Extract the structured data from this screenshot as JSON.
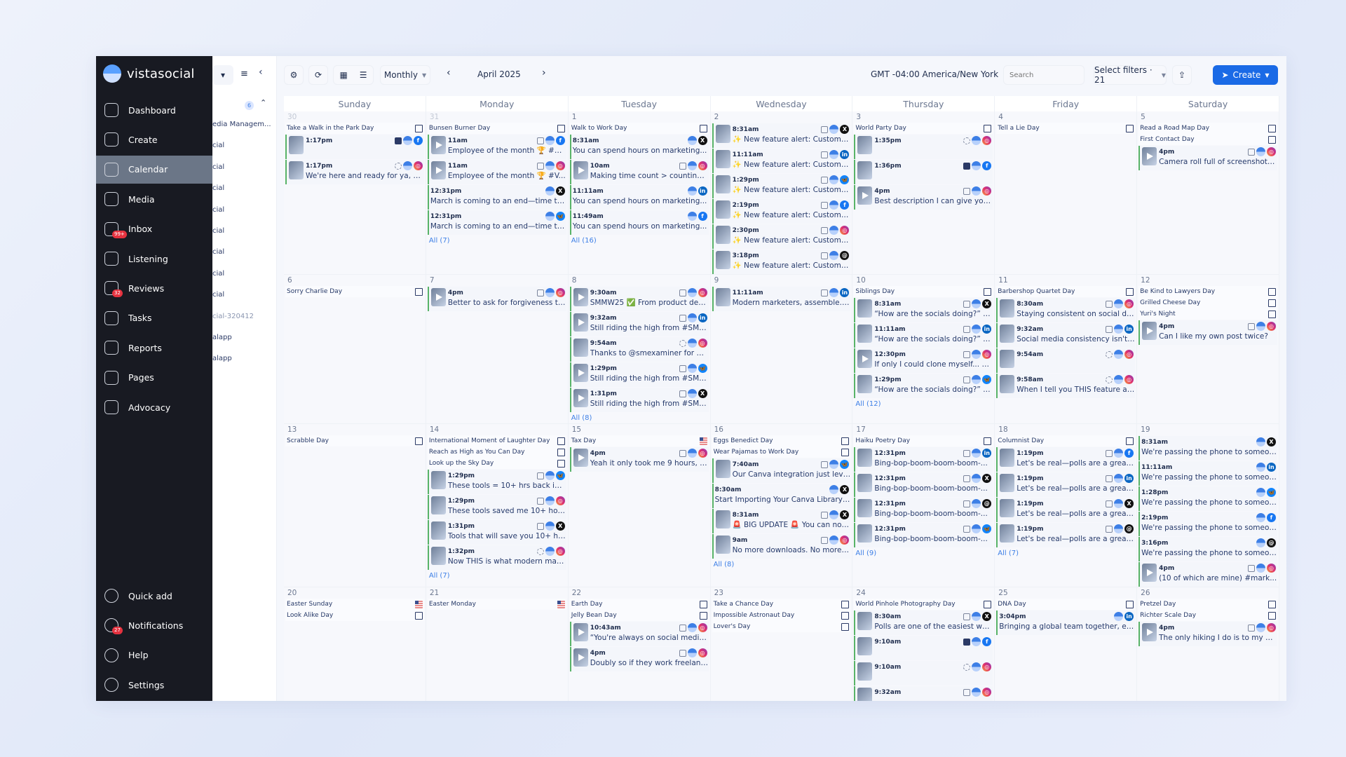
{
  "brand": "vistasocial",
  "colors": {
    "sidebar": "#181a22",
    "accent": "#1a6ae6",
    "post_border": "#58b368",
    "link": "#3d7fe6"
  },
  "sidebar": {
    "items": [
      {
        "label": "Dashboard",
        "icon": "home-icon"
      },
      {
        "label": "Create",
        "icon": "send-icon"
      },
      {
        "label": "Calendar",
        "icon": "calendar-icon",
        "active": true
      },
      {
        "label": "Media",
        "icon": "image-icon"
      },
      {
        "label": "Inbox",
        "icon": "inbox-icon",
        "badge": "99+"
      },
      {
        "label": "Listening",
        "icon": "waveform-icon"
      },
      {
        "label": "Reviews",
        "icon": "star-icon",
        "badge": "32"
      },
      {
        "label": "Tasks",
        "icon": "checkbox-icon"
      },
      {
        "label": "Reports",
        "icon": "chart-icon"
      },
      {
        "label": "Pages",
        "icon": "layout-icon"
      },
      {
        "label": "Advocacy",
        "icon": "megaphone-icon"
      }
    ],
    "bottom": [
      {
        "label": "Quick add",
        "icon": "plus-circle-icon"
      },
      {
        "label": "Notifications",
        "icon": "bell-icon",
        "badge": "27"
      },
      {
        "label": "Help",
        "icon": "help-icon"
      },
      {
        "label": "Settings",
        "icon": "avatar-icon"
      }
    ]
  },
  "panel": {
    "count": "6",
    "items": [
      "edia Managem...",
      "cial",
      "cial",
      "cial",
      "cial",
      "cial",
      "cial",
      "cial",
      "cial",
      "cial-320412",
      "alapp",
      "alapp"
    ]
  },
  "toolbar": {
    "view": "Monthly",
    "month": "April 2025",
    "timezone": "GMT -04:00 America/New York",
    "search_placeholder": "Search",
    "filters": "Select filters · 21",
    "create": "Create"
  },
  "weekdays": [
    "Sunday",
    "Monday",
    "Tuesday",
    "Wednesday",
    "Thursday",
    "Friday",
    "Saturday"
  ],
  "weeks": [
    [
      {
        "num": "30",
        "muted": true,
        "holidays": [
          {
            "name": "Take a Walk in the Park Day",
            "icon": "gift"
          }
        ],
        "posts": [
          {
            "time": "1:17pm",
            "text": "",
            "type": "book",
            "net": "facebook"
          },
          {
            "time": "1:17pm",
            "text": "We're here and ready for ya, So...",
            "type": "story",
            "net": "instagram"
          }
        ]
      },
      {
        "num": "31",
        "muted": true,
        "holidays": [
          {
            "name": "Bunsen Burner Day",
            "icon": "gift"
          }
        ],
        "posts": [
          {
            "time": "11am",
            "text": "Employee of the month 🏆 #Vist...",
            "type": "reel",
            "net": "facebook",
            "video": true
          },
          {
            "time": "11am",
            "text": "Employee of the month 🏆 #V...",
            "type": "reel",
            "net": "instagram",
            "video": true
          },
          {
            "time": "12:31pm",
            "text": "March is coming to an end—time to r...",
            "net": "x",
            "nothumb": true
          },
          {
            "time": "12:31pm",
            "text": "March is coming to an end—time to r...",
            "net": "bluesky",
            "nothumb": true
          }
        ],
        "all": "All (7)"
      },
      {
        "num": "1",
        "holidays": [
          {
            "name": "Walk to Work Day",
            "icon": "gift"
          }
        ],
        "posts": [
          {
            "time": "8:31am",
            "text": "You can spend hours on marketing...",
            "net": "x",
            "nothumb": true
          },
          {
            "time": "10am",
            "text": "Making time count > counting ti...",
            "type": "video",
            "net": "instagram",
            "video": true
          },
          {
            "time": "11:11am",
            "text": "You can spend hours on marketing...",
            "net": "linkedin",
            "nothumb": true
          },
          {
            "time": "11:49am",
            "text": "You can spend hours on marketing...",
            "net": "facebook",
            "nothumb": true
          }
        ],
        "all": "All (16)"
      },
      {
        "num": "2",
        "holidays": [],
        "posts": [
          {
            "time": "8:31am",
            "text": "✨ New feature alert: Custom C...",
            "type": "camera",
            "net": "x"
          },
          {
            "time": "11:11am",
            "text": "✨ New feature alert: Custom C...",
            "type": "camera",
            "net": "linkedin"
          },
          {
            "time": "1:29pm",
            "text": "✨ New feature alert: Custom C...",
            "type": "camera",
            "net": "bluesky"
          },
          {
            "time": "2:19pm",
            "text": "✨ New feature alert: Custom C...",
            "type": "camera",
            "net": "facebook"
          },
          {
            "time": "2:30pm",
            "text": "✨ New feature alert: Custom C...",
            "type": "camera",
            "net": "instagram"
          },
          {
            "time": "3:18pm",
            "text": "✨ New feature alert: Custom C...",
            "type": "camera",
            "net": "threads"
          }
        ]
      },
      {
        "num": "3",
        "holidays": [
          {
            "name": "World Party Day",
            "icon": "gift"
          }
        ],
        "posts": [
          {
            "time": "1:35pm",
            "text": "",
            "type": "story",
            "net": "instagram"
          },
          {
            "time": "1:36pm",
            "text": "",
            "type": "book",
            "net": "facebook"
          },
          {
            "time": "4pm",
            "text": "Best description I can give you ...",
            "type": "reel",
            "net": "instagram",
            "video": true
          }
        ]
      },
      {
        "num": "4",
        "holidays": [
          {
            "name": "Tell a Lie Day",
            "icon": "gift"
          }
        ],
        "posts": []
      },
      {
        "num": "5",
        "holidays": [
          {
            "name": "Read a Road Map Day",
            "icon": "gift"
          },
          {
            "name": "First Contact Day",
            "icon": "gift"
          }
        ],
        "posts": [
          {
            "time": "4pm",
            "text": "Camera roll full of screenshots ...",
            "type": "reel",
            "net": "instagram",
            "video": true
          }
        ]
      }
    ],
    [
      {
        "num": "6",
        "holidays": [
          {
            "name": "Sorry Charlie Day",
            "icon": "gift"
          }
        ],
        "posts": []
      },
      {
        "num": "7",
        "holidays": [],
        "posts": [
          {
            "time": "4pm",
            "text": "Better to ask for forgiveness tha...",
            "type": "reel",
            "net": "instagram",
            "video": true
          }
        ]
      },
      {
        "num": "8",
        "holidays": [],
        "posts": [
          {
            "time": "9:30am",
            "text": "SMMW25 ✅ From product dem...",
            "type": "video",
            "net": "instagram",
            "video": true
          },
          {
            "time": "9:32am",
            "text": "Still riding the high from #SMM...",
            "type": "video",
            "net": "linkedin",
            "video": true
          },
          {
            "time": "9:54am",
            "text": "Thanks to @smexaminer for ha...",
            "type": "story",
            "net": "instagram"
          },
          {
            "time": "1:29pm",
            "text": "Still riding the high from #SMM...",
            "type": "video",
            "net": "bluesky",
            "video": true
          },
          {
            "time": "1:31pm",
            "text": "Still riding the high from #SMM...",
            "type": "video",
            "net": "x",
            "video": true
          }
        ],
        "all": "All (8)"
      },
      {
        "num": "9",
        "holidays": [],
        "posts": [
          {
            "time": "11:11am",
            "text": "Modern marketers, assemble. I...",
            "type": "camera",
            "net": "linkedin"
          }
        ]
      },
      {
        "num": "10",
        "holidays": [
          {
            "name": "Siblings Day",
            "icon": "gift"
          }
        ],
        "posts": [
          {
            "time": "8:31am",
            "text": "“How are the socials doing?” A ...",
            "type": "doc",
            "net": "x"
          },
          {
            "time": "11:11am",
            "text": "“How are the socials doing?” A ...",
            "type": "doc",
            "net": "linkedin"
          },
          {
            "time": "12:30pm",
            "text": "If only I could clone myself... Go...",
            "type": "video",
            "net": "instagram",
            "video": true
          },
          {
            "time": "1:29pm",
            "text": "“How are the socials doing?” A ...",
            "type": "doc",
            "net": "bluesky"
          }
        ],
        "all": "All (12)"
      },
      {
        "num": "11",
        "holidays": [
          {
            "name": "Barbershop Quartet Day",
            "icon": "gift"
          }
        ],
        "posts": [
          {
            "time": "8:30am",
            "text": "Staying consistent on social do...",
            "type": "gallery",
            "net": "instagram"
          },
          {
            "time": "9:32am",
            "text": "Social media consistency isn't j...",
            "type": "doc",
            "net": "linkedin"
          },
          {
            "time": "9:54am",
            "text": "",
            "type": "story",
            "net": "instagram"
          },
          {
            "time": "9:58am",
            "text": "When I tell you THIS feature alo...",
            "type": "story",
            "net": "instagram"
          }
        ]
      },
      {
        "num": "12",
        "holidays": [
          {
            "name": "Be Kind to Lawyers Day",
            "icon": "gift"
          },
          {
            "name": "Grilled Cheese Day",
            "icon": "gift"
          },
          {
            "name": "Yuri's Night",
            "icon": "gift"
          }
        ],
        "posts": [
          {
            "time": "4pm",
            "text": "Can I like my own post twice?",
            "type": "reel",
            "net": "instagram",
            "video": true
          }
        ]
      }
    ],
    [
      {
        "num": "13",
        "holidays": [
          {
            "name": "Scrabble Day",
            "icon": "gift"
          }
        ],
        "posts": []
      },
      {
        "num": "14",
        "holidays": [
          {
            "name": "International Moment of Laughter Day",
            "icon": "gift"
          },
          {
            "name": "Reach as High as You Can Day",
            "icon": "gift"
          },
          {
            "name": "Look up the Sky Day",
            "icon": "gift"
          }
        ],
        "posts": [
          {
            "time": "1:29pm",
            "text": "These tools = 10+ hrs back in m...",
            "type": "gallery",
            "net": "bluesky"
          },
          {
            "time": "1:29pm",
            "text": "These tools saved me 10+ hours...",
            "type": "gallery",
            "net": "instagram"
          },
          {
            "time": "1:31pm",
            "text": "Tools that will save you 10+ hou...",
            "type": "gallery",
            "net": "x"
          },
          {
            "time": "1:32pm",
            "text": "Now THIS is what modern mark...",
            "type": "story",
            "net": "instagram"
          }
        ],
        "all": "All (7)"
      },
      {
        "num": "15",
        "holidays": [
          {
            "name": "Tax Day",
            "icon": "flag"
          }
        ],
        "posts": [
          {
            "time": "4pm",
            "text": "Yeah it only took me 9 hours, 3 ...",
            "type": "reel",
            "net": "instagram",
            "video": true
          }
        ]
      },
      {
        "num": "16",
        "holidays": [
          {
            "name": "Eggs Benedict Day",
            "icon": "gift"
          },
          {
            "name": "Wear Pajamas to Work Day",
            "icon": "gift"
          }
        ],
        "posts": [
          {
            "time": "7:40am",
            "text": "Our Canva integration just level...",
            "type": "camera",
            "net": "bluesky"
          },
          {
            "time": "8:30am",
            "text": "Start Importing Your Canva Library ⤵️...",
            "net": "x",
            "nothumb": true
          },
          {
            "time": "8:31am",
            "text": "🚨 BIG UPDATE 🚨 You can now i...",
            "type": "camera",
            "net": "x"
          },
          {
            "time": "9am",
            "text": "No more downloads. No more t...",
            "type": "gallery",
            "net": "instagram"
          }
        ],
        "all": "All (8)"
      },
      {
        "num": "17",
        "holidays": [
          {
            "name": "Haiku Poetry Day",
            "icon": "gift"
          }
        ],
        "posts": [
          {
            "time": "12:31pm",
            "text": "Bing-bop-boom-boom-boom-...",
            "type": "megaphone",
            "net": "linkedin"
          },
          {
            "time": "12:31pm",
            "text": "Bing-bop-boom-boom-boom-...",
            "type": "megaphone",
            "net": "x"
          },
          {
            "time": "12:31pm",
            "text": "Bing-bop-boom-boom-boom-...",
            "type": "megaphone",
            "net": "threads"
          },
          {
            "time": "12:31pm",
            "text": "Bing-bop-boom-boom-boom-...",
            "type": "megaphone",
            "net": "bluesky"
          }
        ],
        "all": "All (9)"
      },
      {
        "num": "18",
        "holidays": [
          {
            "name": "Columnist Day",
            "icon": "gift"
          }
        ],
        "posts": [
          {
            "time": "1:19pm",
            "text": "Let's be real—polls are a great ...",
            "type": "poll",
            "net": "facebook"
          },
          {
            "time": "1:19pm",
            "text": "Let's be real—polls are a great ...",
            "type": "poll",
            "net": "linkedin"
          },
          {
            "time": "1:19pm",
            "text": "Let's be real—polls are a great ...",
            "type": "poll",
            "net": "x"
          },
          {
            "time": "1:19pm",
            "text": "Let's be real—polls are a great ...",
            "type": "poll",
            "net": "threads"
          }
        ],
        "all": "All (7)"
      },
      {
        "num": "19",
        "holidays": [],
        "posts": [
          {
            "time": "8:31am",
            "text": "We're passing the phone to someon...",
            "net": "x",
            "nothumb": true
          },
          {
            "time": "11:11am",
            "text": "We're passing the phone to someon...",
            "net": "linkedin",
            "nothumb": true
          },
          {
            "time": "1:28pm",
            "text": "We're passing the phone to someon...",
            "net": "bluesky",
            "nothumb": true
          },
          {
            "time": "2:19pm",
            "text": "We're passing the phone to someon...",
            "net": "facebook",
            "nothumb": true
          },
          {
            "time": "3:16pm",
            "text": "We're passing the phone to someon...",
            "net": "threads",
            "nothumb": true
          },
          {
            "time": "4pm",
            "text": "(10 of which are mine)   #mark...",
            "type": "reel",
            "net": "instagram",
            "video": true
          }
        ]
      }
    ],
    [
      {
        "num": "20",
        "holidays": [
          {
            "name": "Easter Sunday",
            "icon": "flag"
          },
          {
            "name": "Look Alike Day",
            "icon": "gift"
          }
        ],
        "posts": []
      },
      {
        "num": "21",
        "holidays": [
          {
            "name": "Easter Monday",
            "icon": "flag"
          }
        ],
        "posts": []
      },
      {
        "num": "22",
        "holidays": [
          {
            "name": "Earth Day",
            "icon": "gift"
          },
          {
            "name": "Jelly Bean Day",
            "icon": "gift"
          }
        ],
        "posts": [
          {
            "time": "10:43am",
            "text": "“You're always on social media...",
            "type": "video",
            "net": "instagram",
            "video": true
          },
          {
            "time": "4pm",
            "text": "Doubly so if they work freelance...",
            "type": "reel",
            "net": "instagram",
            "video": true
          }
        ]
      },
      {
        "num": "23",
        "holidays": [
          {
            "name": "Take a Chance Day",
            "icon": "gift"
          },
          {
            "name": "Impossible Astronaut Day",
            "icon": "gift"
          },
          {
            "name": "Lover's Day",
            "icon": "gift"
          }
        ],
        "posts": []
      },
      {
        "num": "24",
        "holidays": [
          {
            "name": "World Pinhole Photography Day",
            "icon": "gift"
          }
        ],
        "posts": [
          {
            "time": "8:30am",
            "text": "Polls are one of the easiest way...",
            "type": "megaphone",
            "net": "x"
          },
          {
            "time": "9:10am",
            "text": "",
            "type": "book",
            "net": "facebook"
          },
          {
            "time": "9:10am",
            "text": "",
            "type": "story",
            "net": "instagram"
          },
          {
            "time": "9:32am",
            "text": "",
            "type": "camera",
            "net": "instagram"
          }
        ]
      },
      {
        "num": "25",
        "holidays": [
          {
            "name": "DNA Day",
            "icon": "gift"
          }
        ],
        "posts": [
          {
            "time": "3:04pm",
            "text": "Bringing a global team together, eve...",
            "net": "linkedin",
            "nothumb": true
          }
        ]
      },
      {
        "num": "26",
        "holidays": [
          {
            "name": "Pretzel Day",
            "icon": "gift"
          },
          {
            "name": "Richter Scale Day",
            "icon": "gift"
          }
        ],
        "posts": [
          {
            "time": "4pm",
            "text": "The only hiking I do is to my bos...",
            "type": "reel",
            "net": "instagram",
            "video": true
          }
        ]
      }
    ]
  ]
}
